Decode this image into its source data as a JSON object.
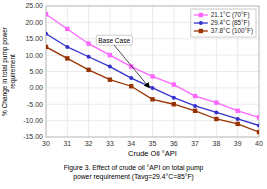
{
  "chart_data": {
    "type": "line",
    "title": "Figure 3. Effect of crude oil °API on total pump\npower requirement (Tavg=29.4°C=85°F)",
    "x_label": "Crude Oil °API",
    "y_label": "% Change in total pump power\nrequirement",
    "x": [
      30,
      31,
      32,
      33,
      34,
      35,
      36,
      37,
      38,
      39,
      40
    ],
    "series": [
      {
        "name": "21.1°C (70°F)",
        "color": "#ff66ff",
        "marker": "square",
        "values": [
          22.5,
          18.0,
          13.5,
          10.0,
          6.5,
          3.5,
          1.0,
          -2.5,
          -4.5,
          -7.0,
          -9.0
        ]
      },
      {
        "name": "29.4°C (85°F)",
        "color": "#3333cc",
        "marker": "circle",
        "values": [
          16.5,
          12.5,
          9.5,
          6.5,
          3.0,
          0.0,
          -3.0,
          -5.5,
          -7.5,
          -9.5,
          -11.5
        ]
      },
      {
        "name": "37.8°C (100°F)",
        "color": "#993300",
        "marker": "square",
        "values": [
          12.5,
          9.0,
          5.5,
          2.5,
          0.5,
          -3.5,
          -5.0,
          -7.0,
          -9.5,
          -11.0,
          -13.5
        ]
      }
    ],
    "xlim": [
      30,
      40
    ],
    "ylim": [
      -15,
      25
    ],
    "xticks": [
      30,
      31,
      32,
      33,
      34,
      35,
      36,
      37,
      38,
      39,
      40
    ],
    "yticks": [
      {
        "value": -15,
        "label": "-15.00"
      },
      {
        "value": -10,
        "label": "-10.00"
      },
      {
        "value": -5,
        "label": "-5.00"
      },
      {
        "value": 0,
        "label": "0.00"
      },
      {
        "value": 5,
        "label": "5.00"
      },
      {
        "value": 10,
        "label": "10.00"
      },
      {
        "value": 15,
        "label": "15.00"
      },
      {
        "value": 20,
        "label": "20.00"
      },
      {
        "value": 25,
        "label": "25.00"
      }
    ],
    "annotations": [
      {
        "text": "Base Case",
        "x": 34.85,
        "y": 0.1,
        "text_x": 33.2,
        "text_y": 14.5
      }
    ],
    "grid": true,
    "legend": "upper right"
  }
}
